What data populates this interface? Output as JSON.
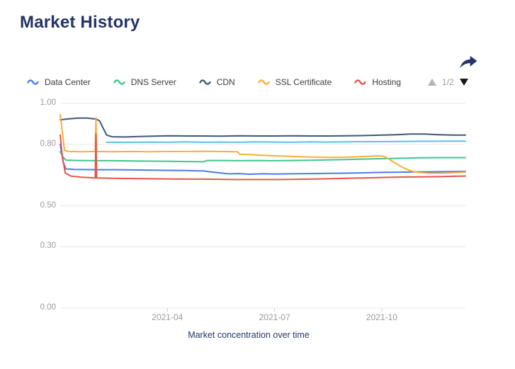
{
  "title": "Market History",
  "colors": {
    "title_navy": "#233465",
    "share_icon_navy": "#24356b",
    "axis_label_gray": "#999999",
    "legend_text": "#3b3b3b",
    "gridline": "#e8e8e8",
    "tick_mark": "#cccccc",
    "pager_up_gray": "#b4b4b4",
    "pager_down_black": "#1a1a1a"
  },
  "icons": {
    "share": "share-forward-arrow",
    "legend_prev": "triangle-up",
    "legend_next": "triangle-down",
    "legend_item_marker": "wave-line"
  },
  "legend": {
    "items": [
      {
        "label": "Data Center",
        "color": "#4C7BEC"
      },
      {
        "label": "DNS Server",
        "color": "#3FC58C"
      },
      {
        "label": "CDN",
        "color": "#3E5777"
      },
      {
        "label": "SSL Certificate",
        "color": "#F8AE3C"
      },
      {
        "label": "Hosting",
        "color": "#E4544A"
      }
    ],
    "page_indicator": "1/2"
  },
  "chart_data": {
    "type": "line",
    "title": "Market History",
    "xlabel": "Market concentration over time",
    "ylabel": "",
    "x_unit": "months since 2021-01",
    "xlim": [
      0,
      11.34
    ],
    "ylim": [
      0,
      1.0
    ],
    "grid": true,
    "legend_position": "top",
    "x_ticks": [
      {
        "value": 3,
        "label": "2021-04"
      },
      {
        "value": 6,
        "label": "2021-07"
      },
      {
        "value": 9,
        "label": "2021-10"
      }
    ],
    "y_ticks": [
      {
        "value": 0.0,
        "label": "0.00"
      },
      {
        "value": 0.3,
        "label": "0.30"
      },
      {
        "value": 0.5,
        "label": "0.50"
      },
      {
        "value": 0.8,
        "label": "0.80"
      },
      {
        "value": 1.0,
        "label": "1.00"
      }
    ],
    "series": [
      {
        "name": "Data Center",
        "color": "#4C7BEC",
        "points": [
          [
            0,
            0.8
          ],
          [
            0.08,
            0.715
          ],
          [
            0.16,
            0.68
          ],
          [
            0.4,
            0.677
          ],
          [
            1,
            0.676
          ],
          [
            1.5,
            0.676
          ],
          [
            2,
            0.675
          ],
          [
            2.5,
            0.674
          ],
          [
            3,
            0.673
          ],
          [
            3.5,
            0.672
          ],
          [
            4,
            0.67
          ],
          [
            4.4,
            0.662
          ],
          [
            4.7,
            0.656
          ],
          [
            5,
            0.657
          ],
          [
            5.3,
            0.654
          ],
          [
            5.7,
            0.656
          ],
          [
            6,
            0.655
          ],
          [
            6.5,
            0.656
          ],
          [
            7,
            0.657
          ],
          [
            7.5,
            0.658
          ],
          [
            8,
            0.659
          ],
          [
            8.5,
            0.661
          ],
          [
            9,
            0.663
          ],
          [
            9.5,
            0.664
          ],
          [
            10,
            0.665
          ],
          [
            10.5,
            0.666
          ],
          [
            11,
            0.667
          ],
          [
            11.34,
            0.668
          ]
        ]
      },
      {
        "name": "DNS Server",
        "color": "#3FC58C",
        "points": [
          [
            0,
            0.765
          ],
          [
            0.08,
            0.737
          ],
          [
            0.16,
            0.723
          ],
          [
            0.5,
            0.721
          ],
          [
            1,
            0.72
          ],
          [
            1.5,
            0.72
          ],
          [
            2,
            0.719
          ],
          [
            2.5,
            0.718
          ],
          [
            3,
            0.717
          ],
          [
            3.5,
            0.716
          ],
          [
            4,
            0.715
          ],
          [
            4.12,
            0.721
          ],
          [
            4.5,
            0.721
          ],
          [
            5,
            0.72
          ],
          [
            5.5,
            0.721
          ],
          [
            6,
            0.72
          ],
          [
            6.5,
            0.721
          ],
          [
            7,
            0.722
          ],
          [
            7.5,
            0.724
          ],
          [
            8,
            0.726
          ],
          [
            8.5,
            0.728
          ],
          [
            9,
            0.73
          ],
          [
            9.5,
            0.732
          ],
          [
            10,
            0.734
          ],
          [
            10.5,
            0.735
          ],
          [
            11,
            0.735
          ],
          [
            11.34,
            0.735
          ]
        ]
      },
      {
        "name": "CDN",
        "color": "#3E5777",
        "points": [
          [
            0,
            0.92
          ],
          [
            0.25,
            0.925
          ],
          [
            0.5,
            0.928
          ],
          [
            0.75,
            0.928
          ],
          [
            1.0,
            0.924
          ],
          [
            1.1,
            0.915
          ],
          [
            1.2,
            0.88
          ],
          [
            1.3,
            0.845
          ],
          [
            1.45,
            0.837
          ],
          [
            1.8,
            0.836
          ],
          [
            2.2,
            0.838
          ],
          [
            2.6,
            0.84
          ],
          [
            3,
            0.842
          ],
          [
            3.5,
            0.841
          ],
          [
            4,
            0.841
          ],
          [
            4.5,
            0.84
          ],
          [
            5,
            0.842
          ],
          [
            5.5,
            0.841
          ],
          [
            6,
            0.841
          ],
          [
            6.5,
            0.842
          ],
          [
            7,
            0.841
          ],
          [
            7.5,
            0.841
          ],
          [
            8,
            0.842
          ],
          [
            8.5,
            0.843
          ],
          [
            9,
            0.845
          ],
          [
            9.4,
            0.847
          ],
          [
            9.8,
            0.85
          ],
          [
            10.2,
            0.85
          ],
          [
            10.6,
            0.847
          ],
          [
            11,
            0.845
          ],
          [
            11.34,
            0.845
          ]
        ]
      },
      {
        "name": "SSL Certificate",
        "color": "#F8AE3C",
        "points": [
          [
            0,
            0.945
          ],
          [
            0.06,
            0.86
          ],
          [
            0.12,
            0.77
          ],
          [
            0.25,
            0.765
          ],
          [
            0.6,
            0.764
          ],
          [
            0.98,
            0.765
          ],
          [
            1.0,
            0.93
          ],
          [
            1.02,
            0.765
          ],
          [
            1.5,
            0.764
          ],
          [
            2,
            0.765
          ],
          [
            2.5,
            0.764
          ],
          [
            3,
            0.765
          ],
          [
            3.5,
            0.765
          ],
          [
            4,
            0.766
          ],
          [
            4.4,
            0.765
          ],
          [
            4.96,
            0.764
          ],
          [
            5.02,
            0.752
          ],
          [
            5.3,
            0.75
          ],
          [
            5.7,
            0.746
          ],
          [
            6,
            0.744
          ],
          [
            6.5,
            0.741
          ],
          [
            7,
            0.738
          ],
          [
            7.5,
            0.736
          ],
          [
            8,
            0.737
          ],
          [
            8.5,
            0.74
          ],
          [
            8.9,
            0.744
          ],
          [
            9.05,
            0.742
          ],
          [
            9.2,
            0.728
          ],
          [
            9.4,
            0.706
          ],
          [
            9.6,
            0.686
          ],
          [
            9.8,
            0.671
          ],
          [
            10,
            0.663
          ],
          [
            10.3,
            0.659
          ],
          [
            10.6,
            0.659
          ],
          [
            11,
            0.661
          ],
          [
            11.34,
            0.665
          ]
        ]
      },
      {
        "name": "Hosting",
        "color": "#E4544A",
        "points": [
          [
            0,
            0.845
          ],
          [
            0.06,
            0.74
          ],
          [
            0.14,
            0.66
          ],
          [
            0.3,
            0.645
          ],
          [
            0.6,
            0.639
          ],
          [
            0.98,
            0.636
          ],
          [
            1.0,
            0.85
          ],
          [
            1.02,
            0.636
          ],
          [
            1.5,
            0.634
          ],
          [
            2,
            0.633
          ],
          [
            2.5,
            0.632
          ],
          [
            3,
            0.631
          ],
          [
            3.5,
            0.63
          ],
          [
            4,
            0.63
          ],
          [
            4.5,
            0.629
          ],
          [
            5,
            0.628
          ],
          [
            5.5,
            0.628
          ],
          [
            6,
            0.628
          ],
          [
            6.5,
            0.629
          ],
          [
            7,
            0.63
          ],
          [
            7.5,
            0.632
          ],
          [
            8,
            0.634
          ],
          [
            8.5,
            0.636
          ],
          [
            9,
            0.638
          ],
          [
            9.5,
            0.64
          ],
          [
            10,
            0.641
          ],
          [
            10.5,
            0.642
          ],
          [
            11,
            0.644
          ],
          [
            11.34,
            0.645
          ]
        ]
      },
      {
        "name": "",
        "color": "#55C3E8",
        "points": [
          [
            1.3,
            0.81
          ],
          [
            2,
            0.81
          ],
          [
            2.5,
            0.811
          ],
          [
            3,
            0.81
          ],
          [
            3.5,
            0.812
          ],
          [
            4,
            0.81
          ],
          [
            4.5,
            0.811
          ],
          [
            5,
            0.81
          ],
          [
            5.5,
            0.812
          ],
          [
            6,
            0.811
          ],
          [
            6.5,
            0.81
          ],
          [
            7,
            0.812
          ],
          [
            7.5,
            0.811
          ],
          [
            8,
            0.812
          ],
          [
            8.5,
            0.813
          ],
          [
            9,
            0.813
          ],
          [
            9.5,
            0.814
          ],
          [
            10,
            0.815
          ],
          [
            10.5,
            0.815
          ],
          [
            11,
            0.816
          ],
          [
            11.34,
            0.816
          ]
        ]
      }
    ]
  }
}
